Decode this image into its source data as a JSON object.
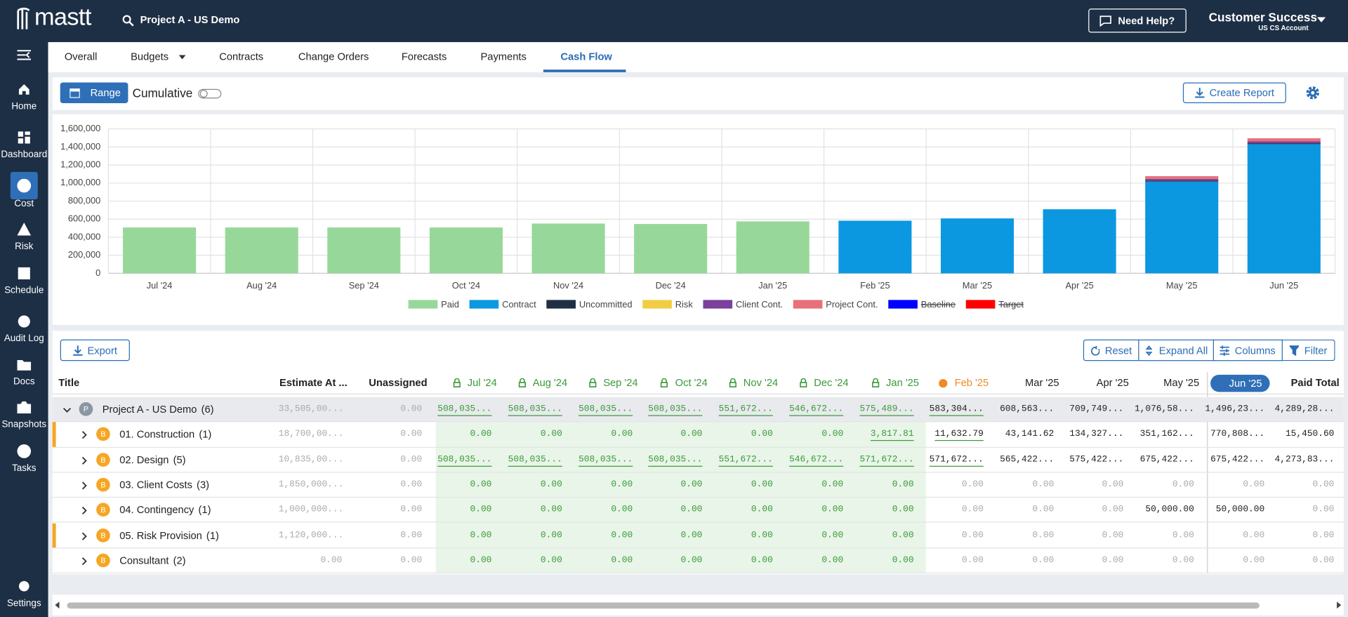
{
  "header": {
    "logo": "mastt",
    "project": "Project A - US Demo",
    "help": "Need Help?",
    "user": "Customer Success",
    "account": "US CS Account"
  },
  "sidebar": [
    "Home",
    "Dashboard",
    "Cost",
    "Risk",
    "Schedule",
    "Audit Log",
    "Docs",
    "Snapshots",
    "Tasks",
    "Settings"
  ],
  "active_sidebar": 2,
  "tabs": [
    "Overall",
    "Budgets",
    "Contracts",
    "Change Orders",
    "Forecasts",
    "Payments",
    "Cash Flow"
  ],
  "active_tab": 6,
  "toolbar": {
    "range": "Range",
    "cumulative": "Cumulative",
    "create_report": "Create Report"
  },
  "chart_data": {
    "type": "bar",
    "stacked": true,
    "categories": [
      "Jul '24",
      "Aug '24",
      "Sep '24",
      "Oct '24",
      "Nov '24",
      "Dec '24",
      "Jan '25",
      "Feb '25",
      "Mar '25",
      "Apr '25",
      "May '25",
      "Jun '25"
    ],
    "series": [
      {
        "name": "Paid",
        "color": "#97d89a",
        "values": [
          508035,
          508035,
          508035,
          508035,
          551672,
          546672,
          575489,
          0,
          0,
          0,
          0,
          0
        ]
      },
      {
        "name": "Contract",
        "color": "#0b98e0",
        "values": [
          0,
          0,
          0,
          0,
          0,
          0,
          0,
          583304,
          608563,
          709749,
          1016580,
          1431230
        ]
      },
      {
        "name": "Uncommitted",
        "color": "#1f3044",
        "values": [
          0,
          0,
          0,
          0,
          0,
          0,
          0,
          0,
          0,
          0,
          10000,
          10000
        ]
      },
      {
        "name": "Risk",
        "color": "#f2cd44",
        "values": [
          0,
          0,
          0,
          0,
          0,
          0,
          0,
          0,
          0,
          0,
          0,
          0
        ]
      },
      {
        "name": "Client Cont.",
        "color": "#7b3f9c",
        "values": [
          0,
          0,
          0,
          0,
          0,
          0,
          0,
          0,
          0,
          0,
          20000,
          20000
        ]
      },
      {
        "name": "Project Cont.",
        "color": "#e8707a",
        "values": [
          0,
          0,
          0,
          0,
          0,
          0,
          0,
          0,
          0,
          0,
          30000,
          35000
        ]
      },
      {
        "name": "Baseline",
        "color": "#0000ff",
        "hidden": true,
        "values": [
          null,
          null,
          null,
          null,
          null,
          null,
          null,
          null,
          null,
          null,
          null,
          null
        ]
      },
      {
        "name": "Target",
        "color": "#ff0000",
        "hidden": true,
        "values": [
          null,
          null,
          null,
          null,
          null,
          null,
          null,
          null,
          null,
          null,
          null,
          null
        ]
      }
    ],
    "ylim": [
      0,
      1600000
    ],
    "yticks": [
      0,
      {
        "value": 200000,
        "label": "200,000"
      },
      {
        "value": 400000,
        "label": "400,000"
      },
      {
        "value": 600000,
        "label": "600,000"
      },
      {
        "value": 800000,
        "label": "800,000"
      },
      {
        "value": 1000000,
        "label": "1,000,000"
      },
      {
        "value": 1200000,
        "label": "1,200,000"
      },
      {
        "value": 1400000,
        "label": "1,400,000"
      },
      {
        "value": 1600000,
        "label": "1,600,000"
      }
    ],
    "grid": true,
    "legend": "bottom"
  },
  "table": {
    "export": "Export",
    "buttons": [
      "Reset",
      "Expand All",
      "Columns",
      "Filter"
    ],
    "columns": [
      "Title",
      "Estimate At ...",
      "Unassigned",
      "Jul '24",
      "Aug '24",
      "Sep '24",
      "Oct '24",
      "Nov '24",
      "Dec '24",
      "Jan '25",
      "Feb '25",
      "Mar '25",
      "Apr '25",
      "May '25",
      "Jun '25",
      "Paid Total"
    ],
    "rows": [
      {
        "badge": "P",
        "title": "Project A - US Demo",
        "count": "(6)",
        "cells": [
          "33,505,00...",
          "0.00",
          "508,035...",
          "508,035...",
          "508,035...",
          "508,035...",
          "551,672...",
          "546,672...",
          "575,489...",
          "583,304...",
          "608,563...",
          "709,749...",
          "1,076,58...",
          "1,496,23...",
          "4,289,28..."
        ]
      },
      {
        "badge": "B",
        "title": "01. Construction",
        "count": "(1)",
        "cells": [
          "18,700,00...",
          "0.00",
          "0.00",
          "0.00",
          "0.00",
          "0.00",
          "0.00",
          "0.00",
          "3,817.81",
          "11,632.79",
          "43,141.62",
          "134,327...",
          "351,162...",
          "770,808...",
          "15,450.60"
        ]
      },
      {
        "badge": "B",
        "title": "02. Design",
        "count": "(5)",
        "cells": [
          "10,835,00...",
          "0.00",
          "508,035...",
          "508,035...",
          "508,035...",
          "508,035...",
          "551,672...",
          "546,672...",
          "571,672...",
          "571,672...",
          "565,422...",
          "575,422...",
          "675,422...",
          "675,422...",
          "4,273,83..."
        ]
      },
      {
        "badge": "B",
        "title": "03. Client Costs",
        "count": "(3)",
        "cells": [
          "1,850,000...",
          "0.00",
          "0.00",
          "0.00",
          "0.00",
          "0.00",
          "0.00",
          "0.00",
          "0.00",
          "0.00",
          "0.00",
          "0.00",
          "0.00",
          "0.00",
          "0.00"
        ]
      },
      {
        "badge": "B",
        "title": "04. Contingency",
        "count": "(1)",
        "cells": [
          "1,000,000...",
          "0.00",
          "0.00",
          "0.00",
          "0.00",
          "0.00",
          "0.00",
          "0.00",
          "0.00",
          "0.00",
          "0.00",
          "0.00",
          "50,000.00",
          "50,000.00",
          "0.00"
        ]
      },
      {
        "badge": "B",
        "title": "05. Risk Provision",
        "count": "(1)",
        "cells": [
          "1,120,000...",
          "0.00",
          "0.00",
          "0.00",
          "0.00",
          "0.00",
          "0.00",
          "0.00",
          "0.00",
          "0.00",
          "0.00",
          "0.00",
          "0.00",
          "0.00",
          "0.00"
        ]
      },
      {
        "badge": "B",
        "title": "Consultant",
        "count": "(2)",
        "cells": [
          "0.00",
          "0.00",
          "0.00",
          "0.00",
          "0.00",
          "0.00",
          "0.00",
          "0.00",
          "0.00",
          "0.00",
          "0.00",
          "0.00",
          "0.00",
          "0.00",
          "0.00"
        ]
      }
    ]
  }
}
